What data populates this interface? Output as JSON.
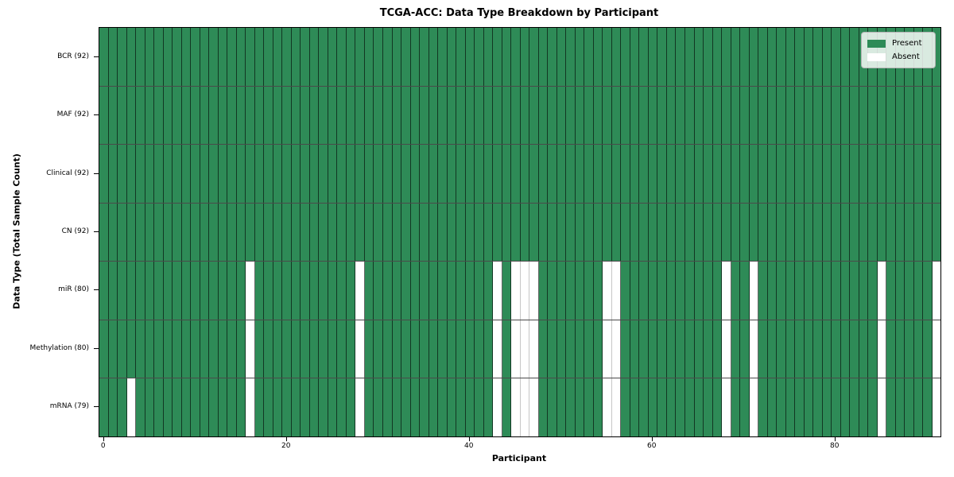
{
  "chart_data": {
    "type": "heatmap",
    "title": "TCGA-ACC: Data Type Breakdown by Participant",
    "xlabel": "Participant",
    "ylabel": "Data Type (Total Sample Count)",
    "x_ticks": [
      0,
      20,
      40,
      60,
      80
    ],
    "x_range": [
      -0.5,
      91.5
    ],
    "n_participants": 92,
    "grid_on": true,
    "legend_position": "upper right",
    "rows": [
      {
        "data_type": "BCR",
        "label": "BCR (92)",
        "present_count": 92,
        "absent_participants": []
      },
      {
        "data_type": "MAF",
        "label": "MAF (92)",
        "present_count": 92,
        "absent_participants": []
      },
      {
        "data_type": "Clinical",
        "label": "Clinical (92)",
        "present_count": 92,
        "absent_participants": []
      },
      {
        "data_type": "CN",
        "label": "CN (92)",
        "present_count": 92,
        "absent_participants": []
      },
      {
        "data_type": "miR",
        "label": "miR (80)",
        "present_count": 80,
        "absent_participants": [
          16,
          28,
          43,
          45,
          46,
          47,
          55,
          56,
          68,
          71,
          85,
          91
        ]
      },
      {
        "data_type": "Methylation",
        "label": "Methylation (80)",
        "present_count": 80,
        "absent_participants": [
          16,
          28,
          43,
          45,
          46,
          47,
          55,
          56,
          68,
          71,
          85,
          91
        ]
      },
      {
        "data_type": "mRNA",
        "label": "mRNA (79)",
        "present_count": 79,
        "absent_participants": [
          3,
          16,
          28,
          43,
          45,
          46,
          47,
          55,
          56,
          68,
          71,
          85,
          91
        ]
      }
    ],
    "legend_items": [
      {
        "label": "Present",
        "color": "#2e8b57"
      },
      {
        "label": "Absent",
        "color": "#ffffff"
      }
    ],
    "colors": {
      "present": "#2e8b57",
      "absent": "#ffffff"
    }
  }
}
